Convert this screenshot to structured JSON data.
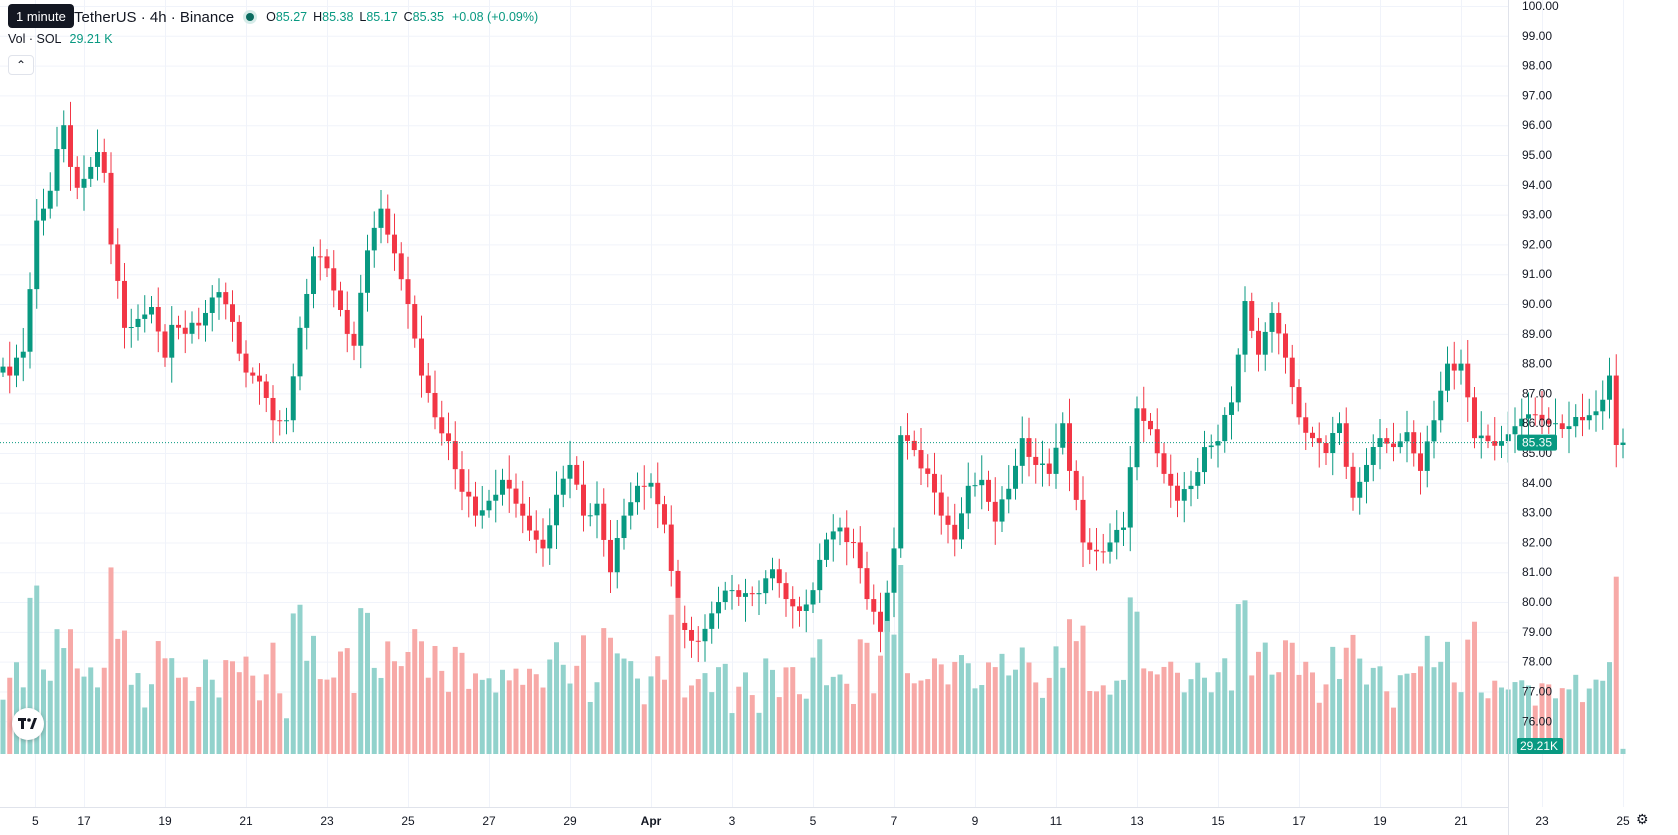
{
  "tooltip": "1 minute",
  "legend": {
    "title": "TetherUS · 4h · Binance",
    "o_label": "O",
    "o": "85.27",
    "h_label": "H",
    "h": "85.38",
    "l_label": "L",
    "l": "85.17",
    "c_label": "C",
    "c": "85.35",
    "change": "+0.08 (+0.09%)"
  },
  "volume_legend": {
    "label": "Vol · SOL",
    "value": "29.21 K"
  },
  "icons": {
    "collapse": "chevron-up-icon",
    "logo": "tradingview-logo",
    "settings": "gear-icon"
  },
  "colors": {
    "up": "#089981",
    "down": "#f23645",
    "up_vol": "#92d2cc",
    "down_vol": "#f7a9a7",
    "grid": "#f0f3fa"
  },
  "chart_data": {
    "type": "candlestick",
    "interval": "4h",
    "exchange": "Binance",
    "price_axis": {
      "min": 74.7,
      "max": 100.0,
      "ticks": [
        "76.00",
        "77.00",
        "78.00",
        "79.00",
        "80.00",
        "81.00",
        "82.00",
        "83.00",
        "84.00",
        "85.00",
        "86.00",
        "87.00",
        "88.00",
        "89.00",
        "90.00",
        "91.00",
        "92.00",
        "93.00",
        "94.00",
        "95.00",
        "96.00",
        "97.00",
        "98.00",
        "99.00",
        "100.00"
      ]
    },
    "time_axis": {
      "labels": [
        {
          "text": "5",
          "day": -0.2
        },
        {
          "text": "17",
          "day": 1
        },
        {
          "text": "19",
          "day": 3
        },
        {
          "text": "21",
          "day": 5
        },
        {
          "text": "23",
          "day": 7
        },
        {
          "text": "25",
          "day": 9
        },
        {
          "text": "27",
          "day": 11
        },
        {
          "text": "29",
          "day": 13
        },
        {
          "text": "Apr",
          "day": 15
        },
        {
          "text": "3",
          "day": 17
        },
        {
          "text": "5",
          "day": 19
        },
        {
          "text": "7",
          "day": 21
        },
        {
          "text": "9",
          "day": 23
        },
        {
          "text": "11",
          "day": 25
        },
        {
          "text": "13",
          "day": 27
        },
        {
          "text": "15",
          "day": 29
        },
        {
          "text": "17",
          "day": 31
        },
        {
          "text": "19",
          "day": 33
        },
        {
          "text": "21",
          "day": 35
        },
        {
          "text": "23",
          "day": 37
        },
        {
          "text": "25",
          "day": 39
        },
        {
          "text": "27",
          "day": 41
        },
        {
          "text": "29",
          "day": 43
        }
      ]
    },
    "current_price": "85.35",
    "current_volume": "29.21K",
    "volume_max": 55,
    "anchors": [
      [
        0,
        87.9
      ],
      [
        1,
        87.6
      ],
      [
        2,
        88.2
      ],
      [
        3,
        88.4
      ],
      [
        4,
        90.5
      ],
      [
        5,
        92.8
      ],
      [
        6,
        93.2
      ],
      [
        7,
        93.8
      ],
      [
        8,
        95.2
      ],
      [
        9,
        96.0
      ],
      [
        10,
        94.6
      ],
      [
        11,
        93.9
      ],
      [
        12,
        94.2
      ],
      [
        13,
        94.6
      ],
      [
        14,
        95.1
      ],
      [
        15,
        94.4
      ],
      [
        16,
        92.0
      ],
      [
        18,
        89.2
      ],
      [
        20,
        89.5
      ],
      [
        22,
        89.9
      ],
      [
        24,
        88.2
      ],
      [
        25,
        89.3
      ],
      [
        27,
        89.0
      ],
      [
        30,
        89.7
      ],
      [
        32,
        90.4
      ],
      [
        34,
        89.4
      ],
      [
        36,
        87.7
      ],
      [
        38,
        87.4
      ],
      [
        40,
        86.1
      ],
      [
        42,
        86.1
      ],
      [
        44,
        89.2
      ],
      [
        46,
        91.6
      ],
      [
        48,
        91.2
      ],
      [
        50,
        89.8
      ],
      [
        52,
        88.6
      ],
      [
        54,
        91.8
      ],
      [
        56,
        93.2
      ],
      [
        58,
        91.7
      ],
      [
        60,
        90.0
      ],
      [
        62,
        87.6
      ],
      [
        64,
        86.2
      ],
      [
        66,
        85.4
      ],
      [
        68,
        83.7
      ],
      [
        70,
        82.9
      ],
      [
        72,
        83.4
      ],
      [
        74,
        84.1
      ],
      [
        76,
        83.3
      ],
      [
        78,
        82.4
      ],
      [
        80,
        81.8
      ],
      [
        82,
        83.6
      ],
      [
        84,
        84.6
      ],
      [
        86,
        82.9
      ],
      [
        88,
        83.3
      ],
      [
        90,
        81.0
      ],
      [
        92,
        82.9
      ],
      [
        94,
        83.9
      ],
      [
        96,
        84.0
      ],
      [
        98,
        82.6
      ],
      [
        100,
        79.3
      ],
      [
        102,
        78.7
      ],
      [
        104,
        79.1
      ],
      [
        106,
        80.0
      ],
      [
        108,
        80.4
      ],
      [
        110,
        80.3
      ],
      [
        112,
        80.3
      ],
      [
        114,
        81.1
      ],
      [
        116,
        80.1
      ],
      [
        118,
        79.7
      ],
      [
        120,
        80.4
      ],
      [
        122,
        82.1
      ],
      [
        124,
        82.5
      ],
      [
        126,
        82.0
      ],
      [
        128,
        80.1
      ],
      [
        130,
        79.0
      ],
      [
        132,
        81.8
      ],
      [
        133,
        85.6
      ],
      [
        135,
        85.1
      ],
      [
        137,
        84.3
      ],
      [
        139,
        82.9
      ],
      [
        141,
        82.1
      ],
      [
        143,
        83.9
      ],
      [
        145,
        84.1
      ],
      [
        147,
        82.7
      ],
      [
        149,
        83.8
      ],
      [
        151,
        85.5
      ],
      [
        153,
        84.6
      ],
      [
        155,
        84.3
      ],
      [
        157,
        86.0
      ],
      [
        158,
        84.4
      ],
      [
        160,
        82.0
      ],
      [
        162,
        81.7
      ],
      [
        164,
        82.0
      ],
      [
        166,
        82.5
      ],
      [
        168,
        86.5
      ],
      [
        170,
        85.8
      ],
      [
        172,
        84.3
      ],
      [
        174,
        83.4
      ],
      [
        176,
        83.9
      ],
      [
        178,
        85.2
      ],
      [
        180,
        85.4
      ],
      [
        182,
        86.7
      ],
      [
        184,
        90.1
      ],
      [
        186,
        88.3
      ],
      [
        188,
        89.7
      ],
      [
        190,
        88.2
      ],
      [
        192,
        86.2
      ],
      [
        194,
        85.5
      ],
      [
        196,
        85.0
      ],
      [
        198,
        86.0
      ],
      [
        200,
        83.5
      ],
      [
        202,
        84.6
      ],
      [
        204,
        85.5
      ],
      [
        206,
        85.2
      ],
      [
        208,
        85.7
      ],
      [
        210,
        84.4
      ],
      [
        212,
        86.1
      ],
      [
        214,
        88.0
      ],
      [
        216,
        88.0
      ],
      [
        218,
        85.5
      ],
      [
        220,
        85.4
      ],
      [
        222,
        85.4
      ],
      [
        224,
        85.9
      ],
      [
        226,
        86.3
      ],
      [
        228,
        86.1
      ],
      [
        230,
        86.0
      ],
      [
        232,
        85.9
      ],
      [
        234,
        86.1
      ],
      [
        236,
        86.4
      ],
      [
        238,
        87.6
      ],
      [
        239,
        85.27
      ],
      [
        240,
        85.35
      ]
    ]
  }
}
